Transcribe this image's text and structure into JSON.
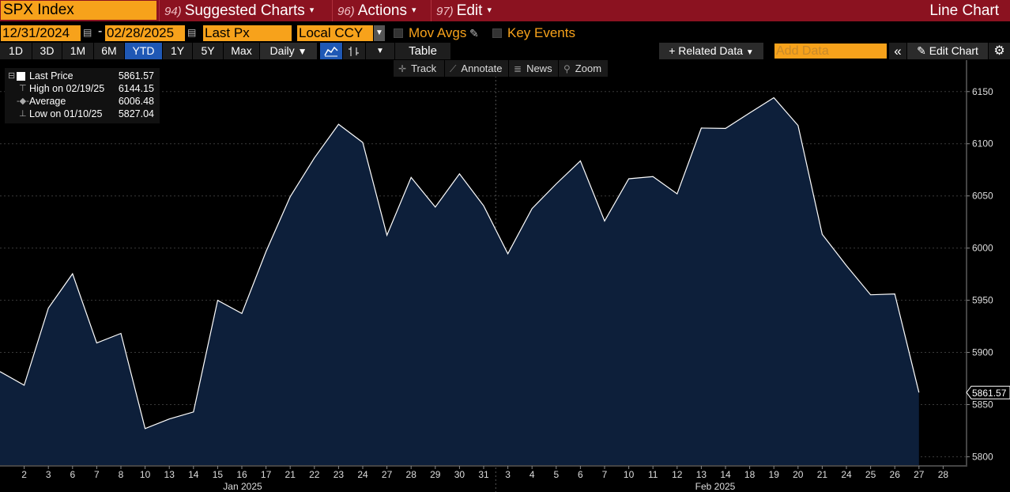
{
  "topbar": {
    "ticker": "SPX Index",
    "menus": [
      {
        "num": "94)",
        "label": "Suggested Charts"
      },
      {
        "num": "96)",
        "label": "Actions"
      },
      {
        "num": "97)",
        "label": "Edit"
      }
    ],
    "chart_type": "Line Chart"
  },
  "settings": {
    "start_date": "12/31/2024",
    "end_date": "02/28/2025",
    "field": "Last Px",
    "currency": "Local CCY",
    "mov_avgs": "Mov Avgs",
    "key_events": "Key Events"
  },
  "range_buttons": [
    "1D",
    "3D",
    "1M",
    "6M",
    "YTD",
    "1Y",
    "5Y",
    "Max"
  ],
  "active_range": "YTD",
  "frequency": "Daily",
  "table_label": "Table",
  "related_data": "Related Data",
  "add_data_placeholder": "Add Data",
  "edit_chart": "Edit Chart",
  "tools": [
    "Track",
    "Annotate",
    "News",
    "Zoom"
  ],
  "legend": {
    "last_price_label": "Last Price",
    "last_price": "5861.57",
    "high_label": "High on 02/19/25",
    "high": "6144.15",
    "average_label": "Average",
    "average": "6006.48",
    "low_label": "Low on 01/10/25",
    "low": "5827.04"
  },
  "colors": {
    "line": "#ffffff",
    "area": "#0d1f3a",
    "accent_orange": "#f7a21b",
    "title_bar": "#8b1220",
    "grid": "#3a3a3a"
  },
  "chart_data": {
    "type": "area",
    "title": "",
    "x": [
      "12/31/24",
      "01/02",
      "01/03",
      "01/06",
      "01/07",
      "01/08",
      "01/10",
      "01/13",
      "01/14",
      "01/15",
      "01/16",
      "01/17",
      "01/21",
      "01/22",
      "01/23",
      "01/24",
      "01/27",
      "01/28",
      "01/29",
      "01/30",
      "01/31",
      "02/03",
      "02/04",
      "02/05",
      "02/06",
      "02/07",
      "02/10",
      "02/11",
      "02/12",
      "02/13",
      "02/14",
      "02/18",
      "02/19",
      "02/20",
      "02/21",
      "02/24",
      "02/25",
      "02/26",
      "02/27"
    ],
    "series": [
      {
        "name": "Last Price",
        "values": [
          5881.63,
          5868.55,
          5942.47,
          5975.38,
          5909.03,
          5918.25,
          5827.04,
          5836.22,
          5842.91,
          5949.91,
          5937.34,
          5996.66,
          6049.24,
          6086.37,
          6118.71,
          6101.24,
          6012.28,
          6067.7,
          6039.31,
          6071.17,
          6040.53,
          5994.57,
          6037.88,
          6061.48,
          6083.57,
          6025.99,
          6066.44,
          6068.5,
          6051.97,
          6115.07,
          6114.63,
          6129.58,
          6144.15,
          6117.52,
          6013.13,
          5983.25,
          5955.25,
          5956.06,
          5861.57
        ]
      }
    ],
    "x_tick_labels": [
      "2",
      "3",
      "6",
      "7",
      "8",
      "10",
      "13",
      "14",
      "15",
      "16",
      "17",
      "21",
      "22",
      "23",
      "24",
      "27",
      "28",
      "29",
      "30",
      "31",
      "3",
      "4",
      "5",
      "6",
      "7",
      "10",
      "11",
      "12",
      "13",
      "14",
      "18",
      "19",
      "20",
      "21",
      "24",
      "25",
      "26",
      "27",
      "28"
    ],
    "month_labels": [
      "Jan 2025",
      "Feb 2025"
    ],
    "y_ticks": [
      5800,
      5850,
      5900,
      5950,
      6000,
      6050,
      6100,
      6150
    ],
    "ylim": [
      5792,
      6165
    ],
    "last_value_label": "5861.57",
    "grid": true,
    "legend_placement": "top-left"
  }
}
